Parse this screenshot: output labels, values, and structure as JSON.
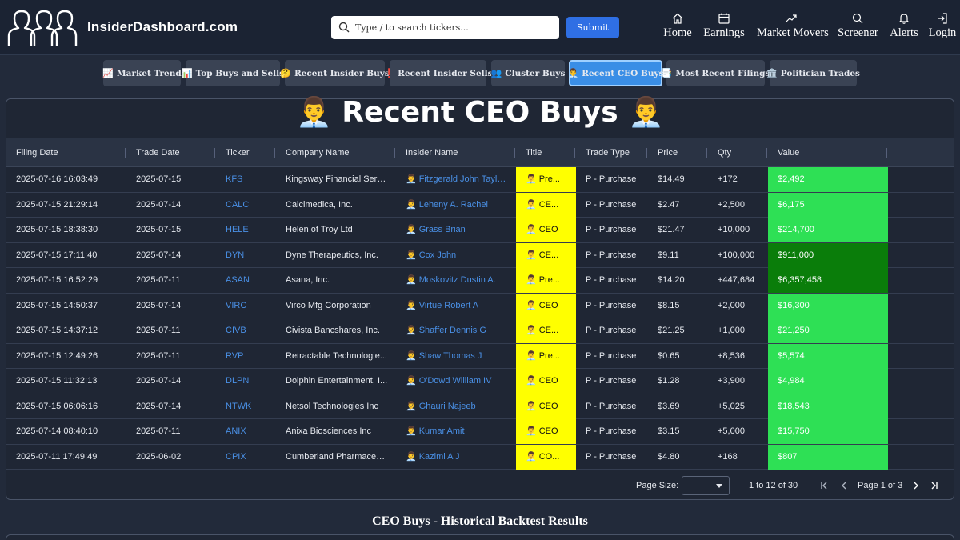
{
  "header": {
    "brand": "InsiderDashboard.com",
    "search_placeholder": "Type / to search tickers...",
    "submit_label": "Submit",
    "nav": [
      {
        "label": "Home",
        "icon": "home-icon"
      },
      {
        "label": "Earnings",
        "icon": "calendar-icon"
      },
      {
        "label": "Market Movers",
        "icon": "trend-icon"
      },
      {
        "label": "Screener",
        "icon": "search-icon"
      },
      {
        "label": "Alerts",
        "icon": "bell-icon"
      },
      {
        "label": "Login",
        "icon": "login-icon"
      }
    ]
  },
  "tabs": [
    {
      "emoji": "📈",
      "label": "Market Trend"
    },
    {
      "emoji": "📊",
      "label": "Top Buys and Sells"
    },
    {
      "emoji": "🤔",
      "label": "Recent Insider Buys"
    },
    {
      "emoji": "❗",
      "label": "Recent Insider Sells"
    },
    {
      "emoji": "👥",
      "label": "Cluster Buys"
    },
    {
      "emoji": "👨‍💼",
      "label": "Recent CEO Buys"
    },
    {
      "emoji": "📑",
      "label": "Most Recent Filings"
    },
    {
      "emoji": "🏛️",
      "label": "Politician Trades"
    }
  ],
  "page_title": "👨‍💼 Recent CEO Buys 👨‍💼",
  "table": {
    "columns": [
      "Filing Date",
      "Trade Date",
      "Ticker",
      "Company Name",
      "Insider Name",
      "Title",
      "Trade Type",
      "Price",
      "Qty",
      "Value"
    ],
    "rows": [
      {
        "filing": "2025-07-16 16:03:49",
        "trade": "2025-07-15",
        "ticker": "KFS",
        "company": "Kingsway Financial Serv...",
        "insider": "Fitzgerald John Taylo...",
        "title": "Pre...",
        "type": "P - Purchase",
        "price": "$14.49",
        "qty": "+172",
        "value": "$2,492",
        "value_color": "#2ee055"
      },
      {
        "filing": "2025-07-15 21:29:14",
        "trade": "2025-07-14",
        "ticker": "CALC",
        "company": "Calcimedica, Inc.",
        "insider": "Leheny A. Rachel",
        "title": "CE...",
        "type": "P - Purchase",
        "price": "$2.47",
        "qty": "+2,500",
        "value": "$6,175",
        "value_color": "#2ee055"
      },
      {
        "filing": "2025-07-15 18:38:30",
        "trade": "2025-07-15",
        "ticker": "HELE",
        "company": "Helen of Troy Ltd",
        "insider": "Grass Brian",
        "title": "CEO",
        "type": "P - Purchase",
        "price": "$21.47",
        "qty": "+10,000",
        "value": "$214,700",
        "value_color": "#2ee055"
      },
      {
        "filing": "2025-07-15 17:11:40",
        "trade": "2025-07-14",
        "ticker": "DYN",
        "company": "Dyne Therapeutics, Inc.",
        "insider": "Cox John",
        "title": "CE...",
        "type": "P - Purchase",
        "price": "$9.11",
        "qty": "+100,000",
        "value": "$911,000",
        "value_color": "#0a7d0a"
      },
      {
        "filing": "2025-07-15 16:52:29",
        "trade": "2025-07-11",
        "ticker": "ASAN",
        "company": "Asana, Inc.",
        "insider": "Moskovitz Dustin A.",
        "title": "Pre...",
        "type": "P - Purchase",
        "price": "$14.20",
        "qty": "+447,684",
        "value": "$6,357,458",
        "value_color": "#0a7d0a"
      },
      {
        "filing": "2025-07-15 14:50:37",
        "trade": "2025-07-14",
        "ticker": "VIRC",
        "company": "Virco Mfg Corporation",
        "insider": "Virtue Robert A",
        "title": "CEO",
        "type": "P - Purchase",
        "price": "$8.15",
        "qty": "+2,000",
        "value": "$16,300",
        "value_color": "#2ee055"
      },
      {
        "filing": "2025-07-15 14:37:12",
        "trade": "2025-07-11",
        "ticker": "CIVB",
        "company": "Civista Bancshares, Inc.",
        "insider": "Shaffer Dennis G",
        "title": "CE...",
        "type": "P - Purchase",
        "price": "$21.25",
        "qty": "+1,000",
        "value": "$21,250",
        "value_color": "#2ee055"
      },
      {
        "filing": "2025-07-15 12:49:26",
        "trade": "2025-07-11",
        "ticker": "RVP",
        "company": "Retractable Technologie...",
        "insider": "Shaw Thomas J",
        "title": "Pre...",
        "type": "P - Purchase",
        "price": "$0.65",
        "qty": "+8,536",
        "value": "$5,574",
        "value_color": "#2ee055"
      },
      {
        "filing": "2025-07-15 11:32:13",
        "trade": "2025-07-14",
        "ticker": "DLPN",
        "company": "Dolphin Entertainment, I...",
        "insider": "O'Dowd William IV",
        "title": "CEO",
        "type": "P - Purchase",
        "price": "$1.28",
        "qty": "+3,900",
        "value": "$4,984",
        "value_color": "#2ee055"
      },
      {
        "filing": "2025-07-15 06:06:16",
        "trade": "2025-07-14",
        "ticker": "NTWK",
        "company": "Netsol Technologies Inc",
        "insider": "Ghauri Najeeb",
        "title": "CEO",
        "type": "P - Purchase",
        "price": "$3.69",
        "qty": "+5,025",
        "value": "$18,543",
        "value_color": "#2ee055"
      },
      {
        "filing": "2025-07-14 08:40:10",
        "trade": "2025-07-11",
        "ticker": "ANIX",
        "company": "Anixa Biosciences Inc",
        "insider": "Kumar Amit",
        "title": "CEO",
        "type": "P - Purchase",
        "price": "$3.15",
        "qty": "+5,000",
        "value": "$15,750",
        "value_color": "#2ee055"
      },
      {
        "filing": "2025-07-11 17:49:49",
        "trade": "2025-06-02",
        "ticker": "CPIX",
        "company": "Cumberland Pharmaceu...",
        "insider": "Kazimi A J",
        "title": "CO...",
        "type": "P - Purchase",
        "price": "$4.80",
        "qty": "+168",
        "value": "$807",
        "value_color": "#2ee055"
      }
    ],
    "title_emoji": "👨‍💼",
    "title_color": "#ffff00"
  },
  "pager": {
    "page_size_label": "Page Size:",
    "range": "1 to 12 of 30",
    "page": "Page 1 of 3"
  },
  "backtest_title": "CEO Buys - Historical Backtest Results"
}
